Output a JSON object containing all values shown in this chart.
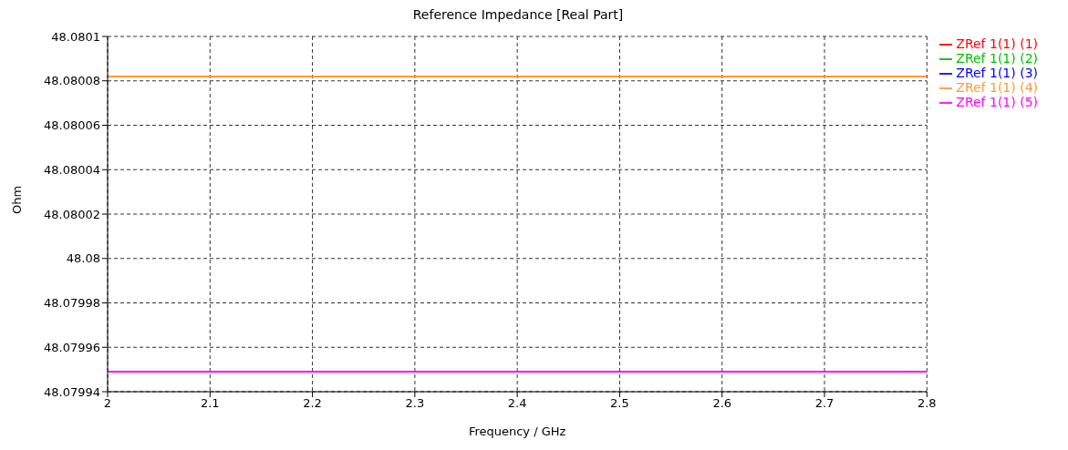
{
  "chart_data": {
    "type": "line",
    "title": "Reference Impedance [Real Part]",
    "xlabel": "Frequency / GHz",
    "ylabel": "Ohm",
    "x": [
      2,
      2.8
    ],
    "series": [
      {
        "name": "ZRef 1(1) (1)",
        "color": "#ff0000",
        "values": [
          null,
          null
        ]
      },
      {
        "name": "ZRef 1(1) (2)",
        "color": "#00c000",
        "values": [
          null,
          null
        ]
      },
      {
        "name": "ZRef 1(1) (3)",
        "color": "#0000ff",
        "values": [
          null,
          null
        ]
      },
      {
        "name": "ZRef 1(1) (4)",
        "color": "#ff9933",
        "values": [
          48.080082,
          48.080082
        ]
      },
      {
        "name": "ZRef 1(1) (5)",
        "color": "#ff00ff",
        "values": [
          48.079949,
          48.079949
        ]
      }
    ],
    "xlim": [
      2,
      2.8
    ],
    "xticks": [
      2,
      2.1,
      2.2,
      2.3,
      2.4,
      2.5,
      2.6,
      2.7,
      2.8
    ],
    "ylim": [
      48.07994,
      48.0801
    ],
    "yticks": [
      48.07994,
      48.07996,
      48.07998,
      48.08,
      48.08002,
      48.08004,
      48.08006,
      48.08008,
      48.0801
    ],
    "grid": true,
    "legend": "top right",
    "marker": "none",
    "line_style": "solid"
  }
}
